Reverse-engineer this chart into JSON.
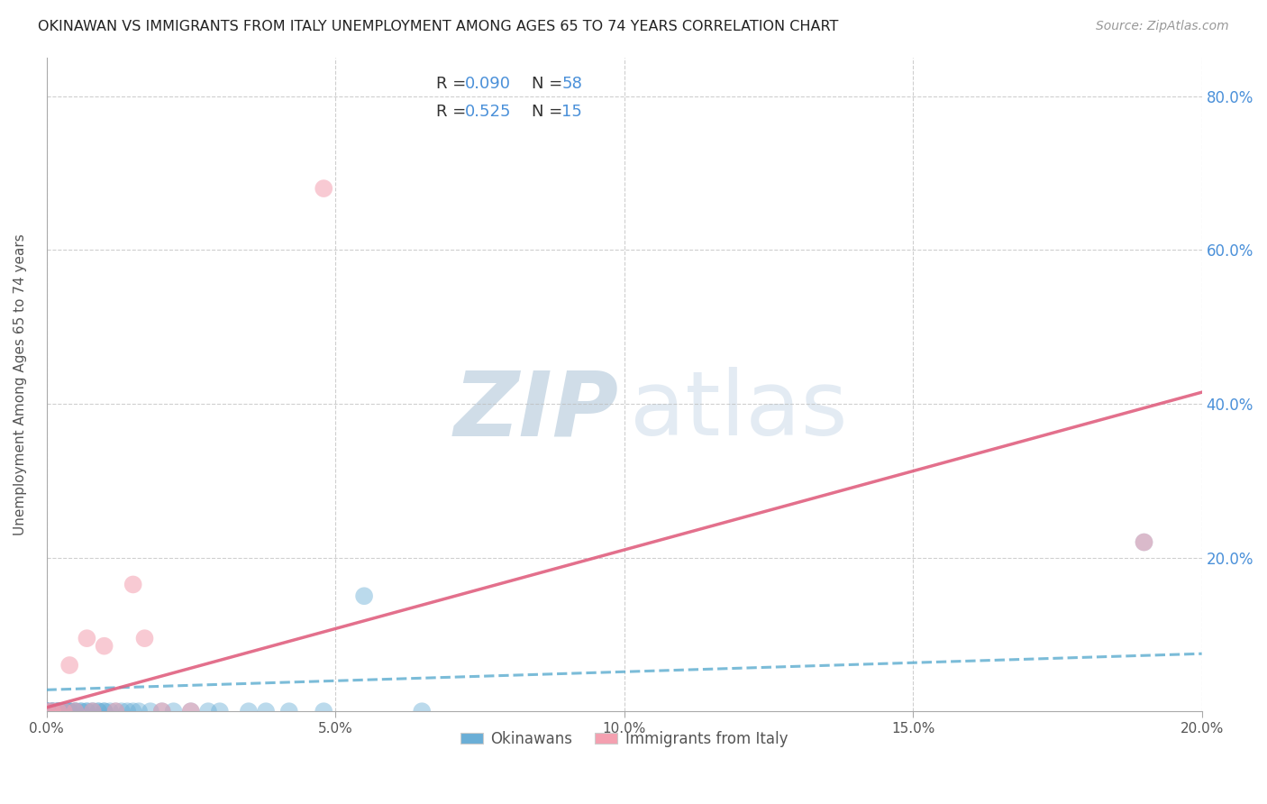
{
  "title": "OKINAWAN VS IMMIGRANTS FROM ITALY UNEMPLOYMENT AMONG AGES 65 TO 74 YEARS CORRELATION CHART",
  "source": "Source: ZipAtlas.com",
  "ylabel": "Unemployment Among Ages 65 to 74 years",
  "xlim": [
    0.0,
    0.2
  ],
  "ylim": [
    0.0,
    0.85
  ],
  "xticks": [
    0.0,
    0.05,
    0.1,
    0.15,
    0.2
  ],
  "xtick_labels": [
    "0.0%",
    "5.0%",
    "10.0%",
    "15.0%",
    "20.0%"
  ],
  "ytick_vals_right": [
    0.2,
    0.4,
    0.6,
    0.8
  ],
  "ytick_labels_right": [
    "20.0%",
    "40.0%",
    "60.0%",
    "80.0%"
  ],
  "okinawan_color": "#6aaed6",
  "italy_color": "#f4a0b0",
  "line_blue_color": "#5aabcf",
  "line_pink_color": "#e06080",
  "watermark_zip_color": "#bccfdf",
  "watermark_atlas_color": "#c8d8e8",
  "background": "#ffffff",
  "grid_color": "#bbbbbb",
  "okinawan_scatter_x": [
    0.0,
    0.0,
    0.0,
    0.0,
    0.0,
    0.0,
    0.0,
    0.0,
    0.0,
    0.001,
    0.001,
    0.001,
    0.001,
    0.002,
    0.002,
    0.002,
    0.002,
    0.002,
    0.003,
    0.003,
    0.003,
    0.003,
    0.004,
    0.004,
    0.004,
    0.004,
    0.005,
    0.005,
    0.005,
    0.006,
    0.006,
    0.007,
    0.007,
    0.008,
    0.008,
    0.009,
    0.009,
    0.01,
    0.01,
    0.011,
    0.012,
    0.013,
    0.014,
    0.015,
    0.016,
    0.018,
    0.02,
    0.022,
    0.025,
    0.028,
    0.03,
    0.035,
    0.038,
    0.042,
    0.048,
    0.055,
    0.065,
    0.19
  ],
  "okinawan_scatter_y": [
    0.0,
    0.0,
    0.0,
    0.0,
    0.0,
    0.0,
    0.0,
    0.0,
    0.0,
    0.0,
    0.0,
    0.0,
    0.0,
    0.0,
    0.0,
    0.0,
    0.0,
    0.0,
    0.0,
    0.0,
    0.0,
    0.0,
    0.0,
    0.0,
    0.0,
    0.0,
    0.0,
    0.0,
    0.0,
    0.0,
    0.0,
    0.0,
    0.0,
    0.0,
    0.0,
    0.0,
    0.0,
    0.0,
    0.0,
    0.0,
    0.0,
    0.0,
    0.0,
    0.0,
    0.0,
    0.0,
    0.0,
    0.0,
    0.0,
    0.0,
    0.0,
    0.0,
    0.0,
    0.0,
    0.0,
    0.15,
    0.0,
    0.22
  ],
  "italy_scatter_x": [
    0.0,
    0.001,
    0.002,
    0.003,
    0.004,
    0.005,
    0.007,
    0.008,
    0.01,
    0.012,
    0.015,
    0.017,
    0.02,
    0.025,
    0.048,
    0.19
  ],
  "italy_scatter_y": [
    0.0,
    0.0,
    0.0,
    0.0,
    0.06,
    0.0,
    0.095,
    0.0,
    0.085,
    0.0,
    0.165,
    0.095,
    0.0,
    0.0,
    0.68,
    0.22
  ],
  "blue_trend_x0": 0.0,
  "blue_trend_x1": 0.2,
  "blue_trend_y0": 0.028,
  "blue_trend_y1": 0.075,
  "pink_trend_x0": 0.0,
  "pink_trend_x1": 0.2,
  "pink_trend_y0": 0.005,
  "pink_trend_y1": 0.415
}
